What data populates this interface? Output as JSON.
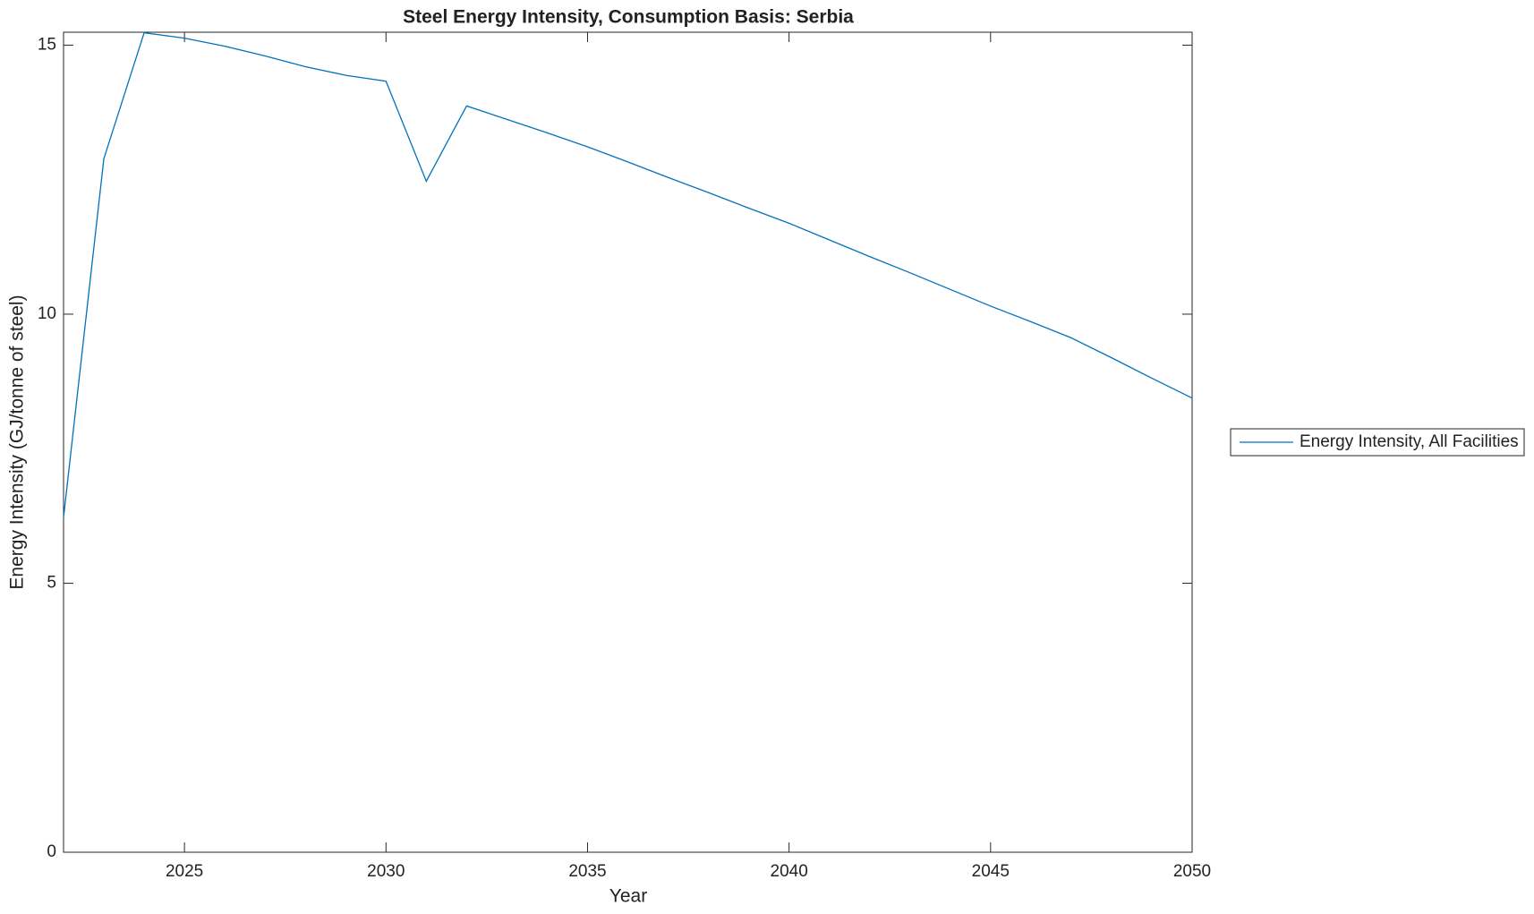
{
  "chart_data": {
    "type": "line",
    "title": "Steel Energy Intensity, Consumption Basis: Serbia",
    "x_label": "Year",
    "y_label": "Energy Intensity (GJ/tonne of steel)",
    "x": [
      2022,
      2023,
      2024,
      2025,
      2026,
      2027,
      2028,
      2029,
      2030,
      2031,
      2032,
      2033,
      2034,
      2035,
      2036,
      2037,
      2038,
      2039,
      2040,
      2041,
      2042,
      2043,
      2044,
      2045,
      2046,
      2047,
      2048,
      2049,
      2050
    ],
    "series": [
      {
        "name": "Energy Intensity, All Facilities",
        "color": "#0072bd",
        "values": [
          6.22,
          12.89,
          15.23,
          15.13,
          14.98,
          14.8,
          14.6,
          14.44,
          14.33,
          12.47,
          13.87,
          13.62,
          13.37,
          13.11,
          12.83,
          12.54,
          12.26,
          11.97,
          11.69,
          11.38,
          11.07,
          10.77,
          10.46,
          10.15,
          9.86,
          9.56,
          9.19,
          8.81,
          8.44
        ]
      }
    ],
    "xlim": [
      2022,
      2050
    ],
    "xticks": [
      2025,
      2030,
      2035,
      2040,
      2045,
      2050
    ],
    "ylim": [
      0,
      15.24
    ],
    "yticks": [
      0,
      5,
      10,
      15
    ],
    "grid": false,
    "legend": "outside-right"
  }
}
